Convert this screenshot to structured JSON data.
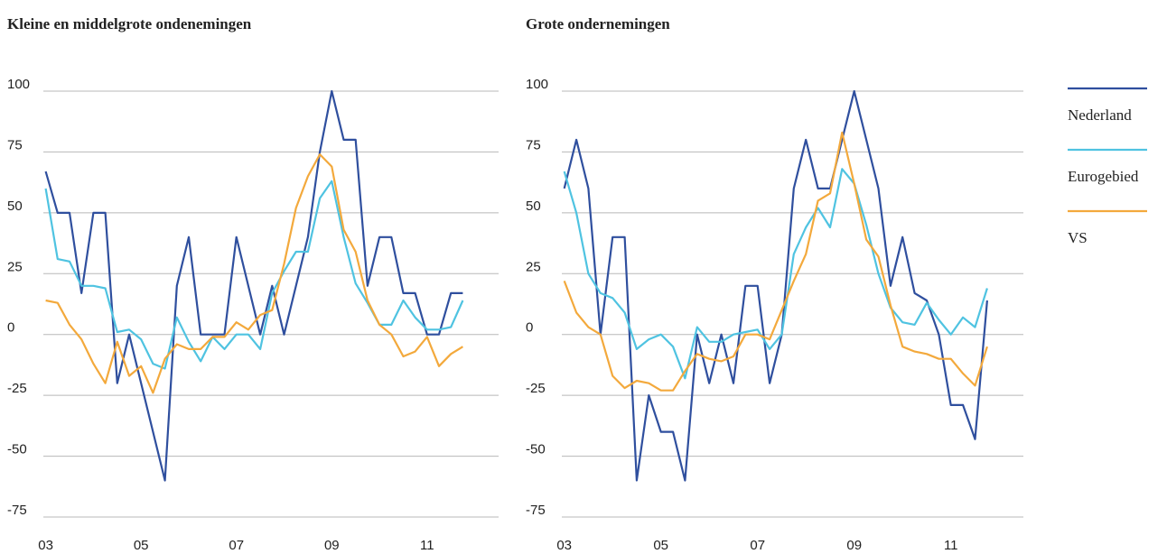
{
  "chart_data": [
    {
      "type": "line",
      "title": "Kleine en middelgrote ondenemingen",
      "x": [
        2003,
        2003.25,
        2003.5,
        2003.75,
        2004,
        2004.25,
        2004.5,
        2004.75,
        2005,
        2005.25,
        2005.5,
        2005.75,
        2006,
        2006.25,
        2006.5,
        2006.75,
        2007,
        2007.25,
        2007.5,
        2007.75,
        2008,
        2008.25,
        2008.5,
        2008.75,
        2009,
        2009.25,
        2009.5,
        2009.75,
        2010,
        2010.25,
        2010.5,
        2010.75,
        2011,
        2011.25,
        2011.5,
        2011.75
      ],
      "xlim": [
        2002.95,
        2012.5
      ],
      "xticks": [
        {
          "value": 2003,
          "label": "03"
        },
        {
          "value": 2005,
          "label": "05"
        },
        {
          "value": 2007,
          "label": "07"
        },
        {
          "value": 2009,
          "label": "09"
        },
        {
          "value": 2011,
          "label": "11"
        }
      ],
      "ylim": [
        -75,
        100
      ],
      "yticks": [
        -75,
        -50,
        -25,
        0,
        25,
        50,
        75,
        100
      ],
      "grid": true,
      "series": [
        {
          "name": "Nederland",
          "color": "#2f4f9e",
          "values": [
            67,
            50,
            50,
            17,
            50,
            50,
            -20,
            0,
            -20,
            -40,
            -60,
            20,
            40,
            0,
            0,
            0,
            40,
            20,
            0,
            20,
            0,
            20,
            40,
            75,
            100,
            80,
            80,
            20,
            40,
            40,
            17,
            17,
            0,
            0,
            17,
            17
          ]
        },
        {
          "name": "Eurogebied",
          "color": "#4fc3e1",
          "values": [
            60,
            31,
            30,
            20,
            20,
            19,
            1,
            2,
            -2,
            -12,
            -14,
            7,
            -3,
            -11,
            -1,
            -6,
            0,
            0,
            -6,
            17,
            26,
            34,
            34,
            56,
            63,
            40,
            21,
            13,
            4,
            4,
            14,
            7,
            2,
            2,
            3,
            14
          ]
        },
        {
          "name": "VS",
          "color": "#f3a93c",
          "values": [
            14,
            13,
            4,
            -2,
            -12,
            -20,
            -3,
            -17,
            -13,
            -24,
            -10,
            -4,
            -6,
            -6,
            -1,
            -1,
            5,
            2,
            8,
            10,
            29,
            52,
            65,
            74,
            69,
            43,
            34,
            14,
            4,
            0,
            -9,
            -7,
            -1,
            -13,
            -8,
            -5
          ]
        }
      ]
    },
    {
      "type": "line",
      "title": "Grote ondernemingen",
      "x": [
        2003,
        2003.25,
        2003.5,
        2003.75,
        2004,
        2004.25,
        2004.5,
        2004.75,
        2005,
        2005.25,
        2005.5,
        2005.75,
        2006,
        2006.25,
        2006.5,
        2006.75,
        2007,
        2007.25,
        2007.5,
        2007.75,
        2008,
        2008.25,
        2008.5,
        2008.75,
        2009,
        2009.25,
        2009.5,
        2009.75,
        2010,
        2010.25,
        2010.5,
        2010.75,
        2011,
        2011.25,
        2011.5,
        2011.75
      ],
      "xlim": [
        2002.95,
        2012.5
      ],
      "xticks": [
        {
          "value": 2003,
          "label": "03"
        },
        {
          "value": 2005,
          "label": "05"
        },
        {
          "value": 2007,
          "label": "07"
        },
        {
          "value": 2009,
          "label": "09"
        },
        {
          "value": 2011,
          "label": "11"
        }
      ],
      "ylim": [
        -75,
        100
      ],
      "yticks": [
        -75,
        -50,
        -25,
        0,
        25,
        50,
        75,
        100
      ],
      "grid": true,
      "legend": "right",
      "series": [
        {
          "name": "Nederland",
          "color": "#2f4f9e",
          "values": [
            60,
            80,
            60,
            0,
            40,
            40,
            -60,
            -25,
            -40,
            -40,
            -60,
            0,
            -20,
            0,
            -20,
            20,
            20,
            -20,
            0,
            60,
            80,
            60,
            60,
            80,
            100,
            80,
            60,
            20,
            40,
            17,
            14,
            0,
            -29,
            -29,
            -43,
            14
          ]
        },
        {
          "name": "Eurogebied",
          "color": "#4fc3e1",
          "values": [
            67,
            50,
            25,
            17,
            15,
            9,
            -6,
            -2,
            0,
            -5,
            -18,
            3,
            -3,
            -3,
            0,
            1,
            2,
            -6,
            0,
            33,
            44,
            52,
            44,
            68,
            62,
            45,
            25,
            11,
            5,
            4,
            13,
            6,
            0,
            7,
            3,
            19
          ]
        },
        {
          "name": "VS",
          "color": "#f3a93c",
          "values": [
            22,
            9,
            3,
            0,
            -17,
            -22,
            -19,
            -20,
            -23,
            -23,
            -15,
            -8,
            -10,
            -11,
            -9,
            0,
            0,
            -2,
            10,
            22,
            33,
            55,
            58,
            83,
            62,
            39,
            32,
            12,
            -5,
            -7,
            -8,
            -10,
            -10,
            -16,
            -21,
            -5
          ]
        }
      ]
    }
  ]
}
